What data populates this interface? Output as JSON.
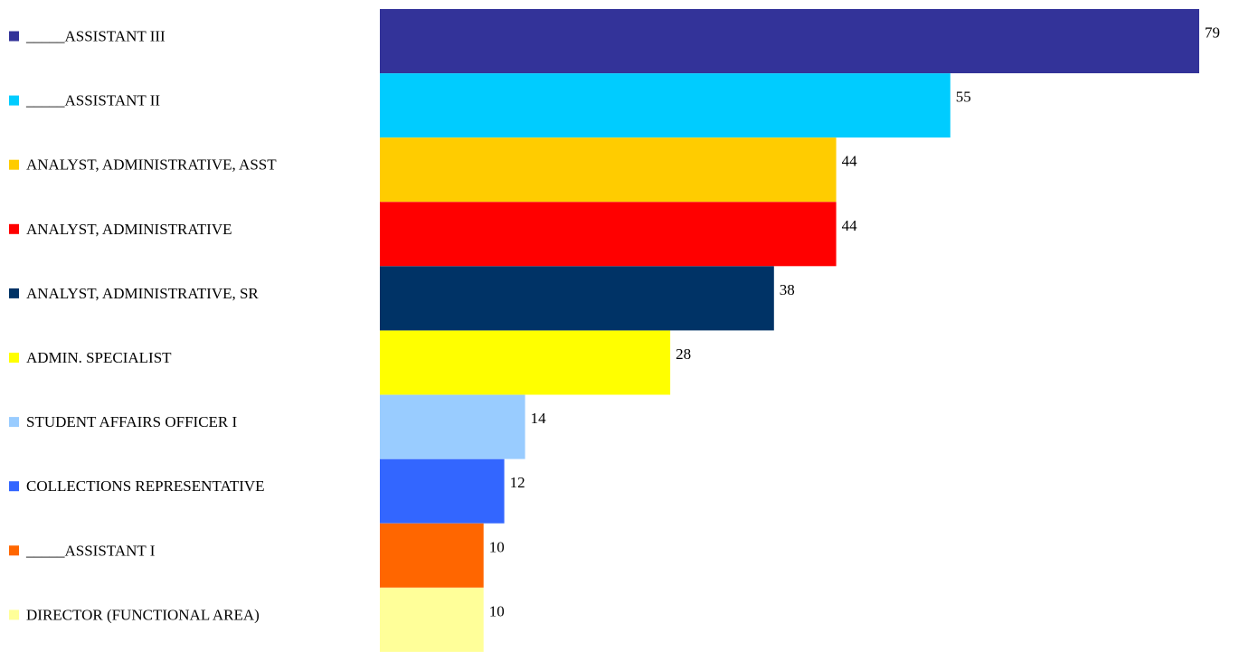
{
  "chart_data": {
    "type": "bar",
    "orientation": "horizontal",
    "title": "",
    "xlabel": "",
    "ylabel": "",
    "legend_position": "left",
    "grid": false,
    "xlim": [
      0,
      79
    ],
    "categories": [
      "_____ASSISTANT III",
      "_____ASSISTANT II",
      "ANALYST, ADMINISTRATIVE, ASST",
      "ANALYST, ADMINISTRATIVE",
      "ANALYST, ADMINISTRATIVE, SR",
      "ADMIN. SPECIALIST",
      "STUDENT AFFAIRS OFFICER I",
      "COLLECTIONS REPRESENTATIVE",
      "_____ASSISTANT I",
      "DIRECTOR (FUNCTIONAL AREA)"
    ],
    "values": [
      79,
      55,
      44,
      44,
      38,
      28,
      14,
      12,
      10,
      10
    ],
    "colors": [
      "#333399",
      "#00ccff",
      "#ffcc00",
      "#ff0000",
      "#003366",
      "#ffff00",
      "#99ccff",
      "#3366ff",
      "#ff6600",
      "#ffff99"
    ]
  }
}
